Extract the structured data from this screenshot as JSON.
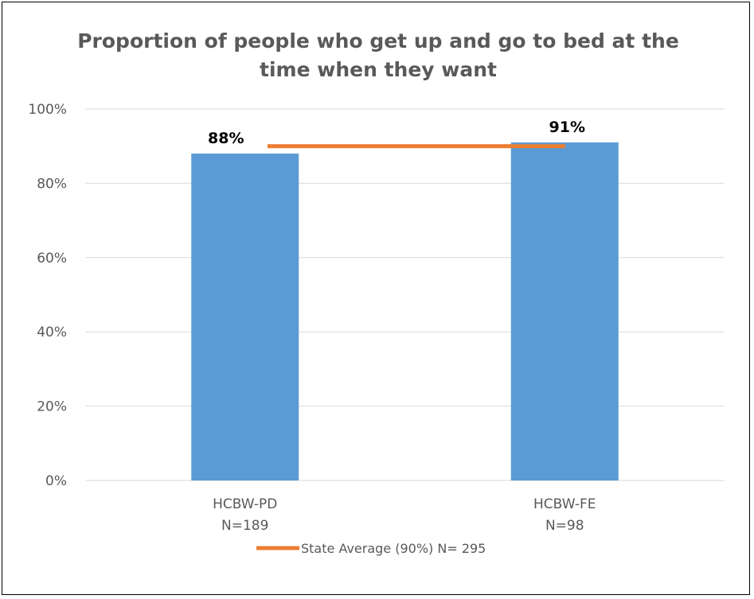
{
  "chart_data": {
    "type": "bar",
    "title": "Proportion of people who get up and go to bed at the time when they want",
    "title_lines": [
      "Proportion of people who get up and go to bed at the",
      "time when they want"
    ],
    "categories": [
      {
        "name": "HCBW-PD",
        "n": "N=189"
      },
      {
        "name": "HCBW-FE",
        "n": "N=98"
      }
    ],
    "values": [
      88,
      91
    ],
    "data_labels": [
      "88%",
      "91%"
    ],
    "reference_line": {
      "label": "State Average (90%) N= 295",
      "value": 90
    },
    "y_ticks": [
      "0%",
      "20%",
      "40%",
      "60%",
      "80%",
      "100%"
    ],
    "ylim": [
      0,
      100
    ],
    "xlabel": "",
    "ylabel": "",
    "grid": true,
    "legend_position": "bottom",
    "colors": {
      "bar": "#5B9BD5",
      "reference_line": "#ED7D31",
      "gridline": "#D9D9D9",
      "text": "#595959"
    }
  }
}
